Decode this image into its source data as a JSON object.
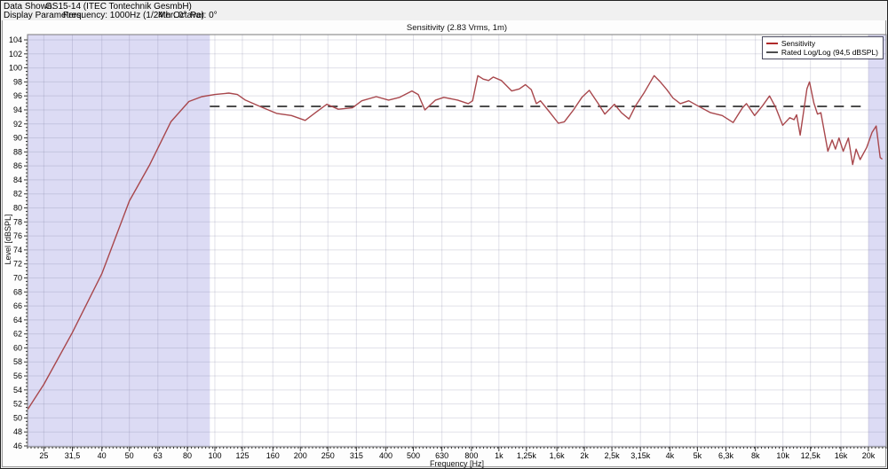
{
  "header": {
    "data_shown_label": "Data Shown:",
    "data_shown_value": "GS15-14 (ITEC Tontechnik GesmbH)",
    "display_params_label": "Display Parameters:",
    "display_params_frequency": "Frequency: 1000Hz (1/24th Octave)",
    "display_params_mer": "Mer: 0°",
    "display_params_par": "Par: 0°"
  },
  "chart": {
    "title": "Sensitivity (2.83 Vrms, 1m)",
    "xlabel": "Frequency [Hz]",
    "ylabel": "Level [dBSPL]",
    "legend": [
      {
        "label": "Sensitivity",
        "color": "#b02a2a"
      },
      {
        "label": "Rated Log/Log (94,5 dBSPL)",
        "color": "#4d4d4d"
      }
    ]
  },
  "colors": {
    "curve": "#a8474c",
    "rated_line": "#4d4d4d",
    "shaded_band": "#dcdbf4",
    "grid": "rgba(120,120,155,0.22)",
    "frame": "#7a7a7a",
    "tick": "#333333",
    "plot_background": "#ffffff"
  },
  "chart_data": {
    "type": "line",
    "title": "Sensitivity (2.83 Vrms, 1m)",
    "xlabel": "Frequency [Hz]",
    "ylabel": "Level [dBSPL]",
    "x_scale": "log",
    "xlim": [
      21.9,
      23100
    ],
    "ylim": [
      46,
      104
    ],
    "grid": true,
    "legend_position": "top-right",
    "y_ticks": [
      104,
      102,
      100,
      98,
      96,
      94,
      92,
      90,
      88,
      86,
      84,
      82,
      80,
      78,
      76,
      74,
      72,
      70,
      68,
      66,
      64,
      62,
      60,
      58,
      56,
      54,
      52,
      50,
      48,
      46
    ],
    "x_ticks": [
      {
        "f": 25,
        "label": "25"
      },
      {
        "f": 31.5,
        "label": "31,5"
      },
      {
        "f": 40,
        "label": "40"
      },
      {
        "f": 50,
        "label": "50"
      },
      {
        "f": 63,
        "label": "63"
      },
      {
        "f": 80,
        "label": "80"
      },
      {
        "f": 100,
        "label": "100"
      },
      {
        "f": 125,
        "label": "125"
      },
      {
        "f": 160,
        "label": "160"
      },
      {
        "f": 200,
        "label": "200"
      },
      {
        "f": 250,
        "label": "250"
      },
      {
        "f": 315,
        "label": "315"
      },
      {
        "f": 400,
        "label": "400"
      },
      {
        "f": 500,
        "label": "500"
      },
      {
        "f": 630,
        "label": "630"
      },
      {
        "f": 800,
        "label": "800"
      },
      {
        "f": 1000,
        "label": "1k"
      },
      {
        "f": 1250,
        "label": "1,25k"
      },
      {
        "f": 1600,
        "label": "1,6k"
      },
      {
        "f": 2000,
        "label": "2k"
      },
      {
        "f": 2500,
        "label": "2,5k"
      },
      {
        "f": 3150,
        "label": "3,15k"
      },
      {
        "f": 4000,
        "label": "4k"
      },
      {
        "f": 5000,
        "label": "5k"
      },
      {
        "f": 6300,
        "label": "6,3k"
      },
      {
        "f": 8000,
        "label": "8k"
      },
      {
        "f": 10000,
        "label": "10k"
      },
      {
        "f": 12500,
        "label": "12,5k"
      },
      {
        "f": 16000,
        "label": "16k"
      },
      {
        "f": 20000,
        "label": "20k"
      }
    ],
    "shaded_bands_hz": [
      [
        21.9,
        96
      ],
      [
        20000,
        23100
      ]
    ],
    "series": [
      {
        "name": "Sensitivity",
        "type": "line",
        "points": [
          [
            22,
            51.3
          ],
          [
            25,
            54.8
          ],
          [
            31.5,
            62.2
          ],
          [
            40,
            70.6
          ],
          [
            50,
            81.0
          ],
          [
            59,
            86.2
          ],
          [
            70,
            92.3
          ],
          [
            81,
            95.2
          ],
          [
            90,
            95.9
          ],
          [
            100,
            96.2
          ],
          [
            112,
            96.4
          ],
          [
            120,
            96.2
          ],
          [
            128,
            95.4
          ],
          [
            144,
            94.5
          ],
          [
            165,
            93.5
          ],
          [
            186,
            93.2
          ],
          [
            208,
            92.5
          ],
          [
            226,
            93.6
          ],
          [
            248,
            94.8
          ],
          [
            272,
            94.1
          ],
          [
            305,
            94.3
          ],
          [
            329,
            95.3
          ],
          [
            370,
            95.9
          ],
          [
            409,
            95.4
          ],
          [
            447,
            95.8
          ],
          [
            494,
            96.7
          ],
          [
            520,
            96.2
          ],
          [
            549,
            94.0
          ],
          [
            598,
            95.4
          ],
          [
            640,
            95.8
          ],
          [
            716,
            95.4
          ],
          [
            780,
            94.9
          ],
          [
            808,
            95.3
          ],
          [
            843,
            98.9
          ],
          [
            880,
            98.4
          ],
          [
            920,
            98.2
          ],
          [
            955,
            98.7
          ],
          [
            1020,
            98.2
          ],
          [
            1110,
            96.7
          ],
          [
            1180,
            97.0
          ],
          [
            1240,
            97.6
          ],
          [
            1300,
            96.9
          ],
          [
            1355,
            94.9
          ],
          [
            1400,
            95.3
          ],
          [
            1500,
            93.8
          ],
          [
            1620,
            92.1
          ],
          [
            1700,
            92.3
          ],
          [
            1830,
            94.0
          ],
          [
            1960,
            95.8
          ],
          [
            2080,
            96.8
          ],
          [
            2230,
            95.0
          ],
          [
            2360,
            93.4
          ],
          [
            2550,
            94.8
          ],
          [
            2700,
            93.6
          ],
          [
            2870,
            92.7
          ],
          [
            3030,
            94.6
          ],
          [
            3250,
            96.5
          ],
          [
            3520,
            98.9
          ],
          [
            3700,
            98.0
          ],
          [
            3900,
            96.9
          ],
          [
            4100,
            95.7
          ],
          [
            4350,
            94.9
          ],
          [
            4660,
            95.3
          ],
          [
            5000,
            94.6
          ],
          [
            5560,
            93.6
          ],
          [
            6110,
            93.2
          ],
          [
            6680,
            92.2
          ],
          [
            7200,
            94.3
          ],
          [
            7440,
            94.9
          ],
          [
            7950,
            93.2
          ],
          [
            8480,
            94.6
          ],
          [
            8970,
            96.0
          ],
          [
            9440,
            94.3
          ],
          [
            9980,
            91.8
          ],
          [
            10570,
            92.9
          ],
          [
            10940,
            92.6
          ],
          [
            11170,
            93.3
          ],
          [
            11500,
            90.4
          ],
          [
            12150,
            97.0
          ],
          [
            12400,
            98.0
          ],
          [
            12850,
            95.0
          ],
          [
            13230,
            93.4
          ],
          [
            13600,
            93.6
          ],
          [
            14400,
            88.1
          ],
          [
            14900,
            89.7
          ],
          [
            15300,
            88.4
          ],
          [
            15750,
            90.0
          ],
          [
            16300,
            88.1
          ],
          [
            17000,
            90.0
          ],
          [
            17600,
            86.2
          ],
          [
            18100,
            88.4
          ],
          [
            18700,
            86.9
          ],
          [
            19700,
            88.6
          ],
          [
            20600,
            90.8
          ],
          [
            21300,
            91.7
          ],
          [
            22000,
            87.2
          ],
          [
            22300,
            87.0
          ]
        ]
      },
      {
        "name": "Rated Log/Log (94,5 dBSPL)",
        "type": "hline",
        "value": 94.5,
        "span_hz": [
          96,
          19300
        ],
        "dash": "11 8"
      }
    ]
  }
}
